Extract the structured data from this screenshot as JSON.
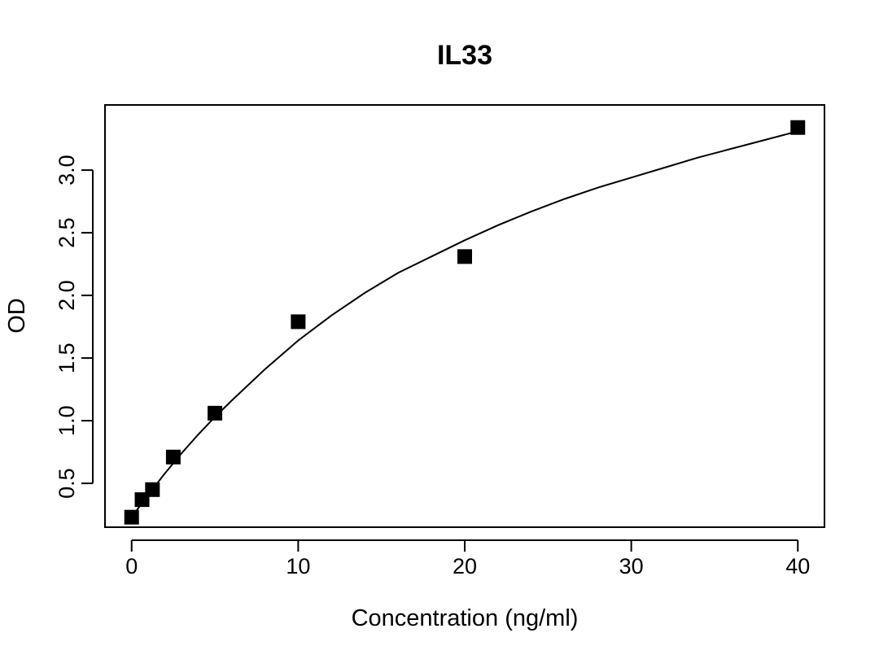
{
  "chart_data": {
    "type": "scatter",
    "title": "IL33",
    "xlabel": "Concentration (ng/ml)",
    "ylabel": "OD",
    "xlim": [
      -1.6,
      41.6
    ],
    "ylim": [
      0.15,
      3.52
    ],
    "xticks": [
      0,
      10,
      20,
      30,
      40
    ],
    "xtick_labels": [
      "0",
      "10",
      "20",
      "30",
      "40"
    ],
    "yticks": [
      0.5,
      1.0,
      1.5,
      2.0,
      2.5,
      3.0
    ],
    "ytick_labels": [
      "0.5",
      "1.0",
      "1.5",
      "2.0",
      "2.5",
      "3.0"
    ],
    "grid": false,
    "marker": "filled-square",
    "marker_color": "#000000",
    "points": [
      {
        "x": 0,
        "y": 0.23
      },
      {
        "x": 0.625,
        "y": 0.37
      },
      {
        "x": 1.25,
        "y": 0.45
      },
      {
        "x": 2.5,
        "y": 0.71
      },
      {
        "x": 5,
        "y": 1.06
      },
      {
        "x": 10,
        "y": 1.79
      },
      {
        "x": 20,
        "y": 2.31
      },
      {
        "x": 40,
        "y": 3.34
      }
    ],
    "fit_curve": {
      "type": "line",
      "color": "#000000",
      "points": [
        {
          "x": 0,
          "y": 0.23
        },
        {
          "x": 1,
          "y": 0.41
        },
        {
          "x": 2,
          "y": 0.58
        },
        {
          "x": 3,
          "y": 0.74
        },
        {
          "x": 4,
          "y": 0.89
        },
        {
          "x": 5,
          "y": 1.03
        },
        {
          "x": 6,
          "y": 1.16
        },
        {
          "x": 8,
          "y": 1.41
        },
        {
          "x": 10,
          "y": 1.64
        },
        {
          "x": 12,
          "y": 1.84
        },
        {
          "x": 14,
          "y": 2.02
        },
        {
          "x": 16,
          "y": 2.18
        },
        {
          "x": 18,
          "y": 2.31
        },
        {
          "x": 20,
          "y": 2.44
        },
        {
          "x": 22,
          "y": 2.56
        },
        {
          "x": 24,
          "y": 2.67
        },
        {
          "x": 26,
          "y": 2.77
        },
        {
          "x": 28,
          "y": 2.86
        },
        {
          "x": 30,
          "y": 2.94
        },
        {
          "x": 32,
          "y": 3.02
        },
        {
          "x": 34,
          "y": 3.1
        },
        {
          "x": 36,
          "y": 3.17
        },
        {
          "x": 38,
          "y": 3.24
        },
        {
          "x": 40,
          "y": 3.31
        }
      ]
    }
  }
}
